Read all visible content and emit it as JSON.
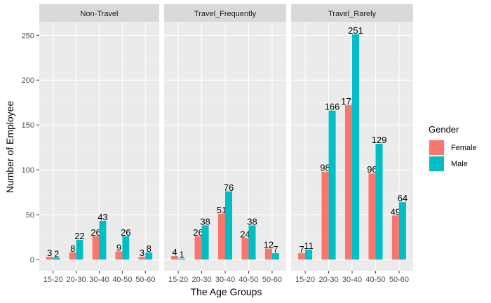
{
  "chart_data": {
    "type": "bar",
    "facets": [
      "Non-Travel",
      "Travel_Frequently",
      "Travel_Rarely"
    ],
    "categories": [
      "15-20",
      "20-30",
      "30-40",
      "40-50",
      "50-60"
    ],
    "series": [
      {
        "name": "Female",
        "color": "#F8766D"
      },
      {
        "name": "Male",
        "color": "#00BFC4"
      }
    ],
    "values": {
      "Non-Travel": {
        "Female": [
          3,
          8,
          26,
          9,
          3
        ],
        "Male": [
          2,
          22,
          43,
          26,
          8
        ]
      },
      "Travel_Frequently": {
        "Female": [
          4,
          26,
          51,
          24,
          12
        ],
        "Male": [
          1,
          38,
          76,
          38,
          7
        ]
      },
      "Travel_Rarely": {
        "Female": [
          7,
          98,
          172,
          96,
          49
        ],
        "Male": [
          11,
          166,
          251,
          129,
          64
        ]
      }
    },
    "xlabel": "The Age Groups",
    "ylabel": "Number of Employee",
    "ylim": [
      -12.5,
      263.5
    ],
    "yticks": [
      0,
      50,
      100,
      150,
      200,
      250
    ],
    "legend_title": "Gender",
    "legend_position": "right",
    "grid": true
  }
}
